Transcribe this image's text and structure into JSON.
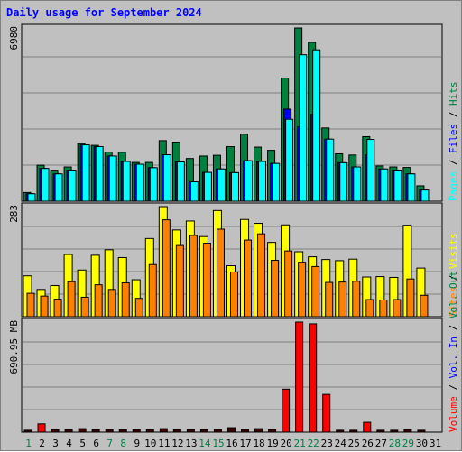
{
  "title": "Daily usage for September 2024",
  "chart_data": [
    {
      "type": "bar",
      "panel": "hits-files-pages",
      "categories": [
        "1",
        "2",
        "3",
        "4",
        "5",
        "6",
        "7",
        "8",
        "9",
        "10",
        "11",
        "12",
        "13",
        "14",
        "15",
        "16",
        "17",
        "18",
        "19",
        "20",
        "21",
        "22",
        "23",
        "24",
        "25",
        "26",
        "27",
        "28",
        "29",
        "30",
        "31"
      ],
      "weekend_days": [
        "1",
        "7",
        "8",
        "14",
        "15",
        "21",
        "22",
        "28",
        "29"
      ],
      "ytick_label": "6980",
      "ymax": 6980,
      "series": [
        {
          "name": "Hits",
          "color": "#008040",
          "values": [
            350,
            1450,
            1250,
            1380,
            2320,
            2250,
            1980,
            1970,
            1560,
            1560,
            2440,
            2380,
            1720,
            1820,
            1850,
            2200,
            2700,
            2180,
            2050,
            4960,
            6980,
            6400,
            2950,
            1910,
            1860,
            2600,
            1420,
            1380,
            1360,
            620,
            0
          ]
        },
        {
          "name": "Files",
          "color": "#0000ff",
          "values": [
            300,
            1320,
            1100,
            1250,
            2270,
            2200,
            1820,
            1600,
            1490,
            1350,
            1870,
            1580,
            780,
            1160,
            1300,
            1150,
            1630,
            1600,
            1520,
            3710,
            3000,
            3500,
            2500,
            1550,
            1380,
            1870,
            1300,
            1250,
            1100,
            450,
            0
          ]
        },
        {
          "name": "Pages",
          "color": "#00ffff",
          "values": [
            300,
            1320,
            1100,
            1250,
            2270,
            2200,
            1820,
            1600,
            1490,
            1350,
            1870,
            1580,
            780,
            1160,
            1300,
            1150,
            1630,
            1600,
            1520,
            3300,
            5900,
            6100,
            2500,
            1550,
            1380,
            2490,
            1300,
            1250,
            1100,
            450,
            0
          ]
        }
      ],
      "legend": [
        "Hits",
        "Files",
        "Pages"
      ]
    },
    {
      "type": "bar",
      "panel": "visits-sites",
      "categories": [
        "1",
        "2",
        "3",
        "4",
        "5",
        "6",
        "7",
        "8",
        "9",
        "10",
        "11",
        "12",
        "13",
        "14",
        "15",
        "16",
        "17",
        "18",
        "19",
        "20",
        "21",
        "22",
        "23",
        "24",
        "25",
        "26",
        "27",
        "28",
        "29",
        "30",
        "31"
      ],
      "ytick_label": "283",
      "ymax": 283,
      "series": [
        {
          "name": "Visits",
          "color": "#ffff00",
          "values": [
            105,
            70,
            80,
            160,
            120,
            158,
            172,
            152,
            95,
            201,
            283,
            223,
            246,
            206,
            273,
            131,
            250,
            240,
            191,
            236,
            167,
            154,
            147,
            144,
            148,
            102,
            103,
            101,
            235,
            125,
            0
          ]
        },
        {
          "name": "Sites",
          "color": "#ff8000",
          "values": [
            60,
            53,
            45,
            90,
            50,
            82,
            70,
            87,
            47,
            134,
            249,
            183,
            209,
            189,
            225,
            115,
            197,
            213,
            145,
            169,
            140,
            129,
            88,
            89,
            91,
            44,
            43,
            44,
            97,
            55,
            0
          ]
        }
      ],
      "legend": [
        "Visits",
        "Sites"
      ]
    },
    {
      "type": "bar",
      "panel": "volume",
      "categories": [
        "1",
        "2",
        "3",
        "4",
        "5",
        "6",
        "7",
        "8",
        "9",
        "10",
        "11",
        "12",
        "13",
        "14",
        "15",
        "16",
        "17",
        "18",
        "19",
        "20",
        "21",
        "22",
        "23",
        "24",
        "25",
        "26",
        "27",
        "28",
        "29",
        "30",
        "31"
      ],
      "ytick_label": "690.95 MB",
      "ymax": 690.95,
      "series": [
        {
          "name": "Volume",
          "color": "#ff0000",
          "values": [
            12,
            52,
            16,
            16,
            22,
            16,
            16,
            16,
            16,
            16,
            22,
            16,
            16,
            16,
            16,
            28,
            16,
            22,
            16,
            270,
            690.95,
            680,
            237,
            12,
            12,
            62,
            12,
            12,
            16,
            12,
            0
          ]
        }
      ],
      "legend": [
        "Volume",
        "Vol. In",
        "Vol. Out"
      ]
    }
  ],
  "legend_colors": {
    "Hits": "#008040",
    "Files": "#0000ff",
    "Pages": "#00ffff",
    "Visits": "#ffff00",
    "Sites": "#ff8000",
    "Volume": "#ff0000",
    "Vol. In": "#0000ff",
    "Vol. Out": "#008040",
    "separator": "#000000",
    "x_weekday": "#000000",
    "x_weekend": "#008040"
  }
}
